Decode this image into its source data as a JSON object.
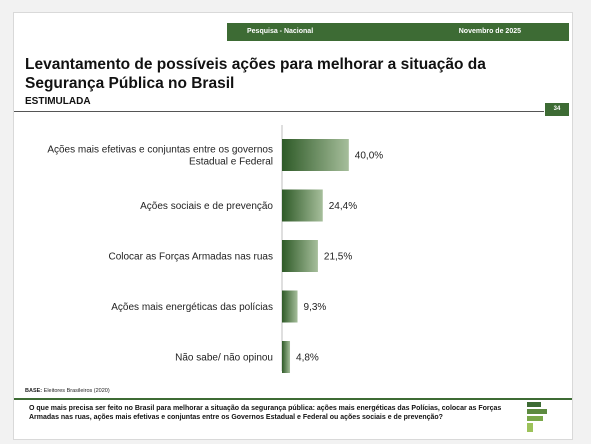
{
  "header": {
    "left_label": "Pesquisa - Nacional",
    "right_label": "Novembro de 2025"
  },
  "title": "Levantamento de possíveis ações para melhorar a situação da Segurança Pública no Brasil",
  "subtitle": "ESTIMULADA",
  "page_number": "34",
  "base": {
    "label": "BASE:",
    "text": "Eleitores Brasileiros (2020)"
  },
  "question": "O que mais precisa ser feito no Brasil para melhorar a situação da segurança pública: ações mais energéticas das Polícias, colocar as Forças Armadas nas ruas, ações mais efetivas e conjuntas entre os Governos Estadual e Federal ou ações sociais e de prevenção?",
  "colors": {
    "bar_dark": "#2e5a27",
    "bar_light": "#a6be9b",
    "brand": "#3d6b34"
  },
  "chart_data": {
    "type": "bar",
    "orientation": "horizontal",
    "categories": [
      [
        "Ações mais efetivas e conjuntas entre os governos",
        "Estadual e Federal"
      ],
      [
        "Ações sociais e de prevenção"
      ],
      [
        "Colocar as Forças Armadas nas ruas"
      ],
      [
        "Ações mais energéticas das polícias"
      ],
      [
        "Não sabe/ não opinou"
      ]
    ],
    "values": [
      40.0,
      24.4,
      21.5,
      9.3,
      4.8
    ],
    "value_labels": [
      "40,0%",
      "24,4%",
      "21,5%",
      "9,3%",
      "4,8%"
    ],
    "xlim": [
      0,
      100
    ],
    "grid": false,
    "legend": "none"
  }
}
